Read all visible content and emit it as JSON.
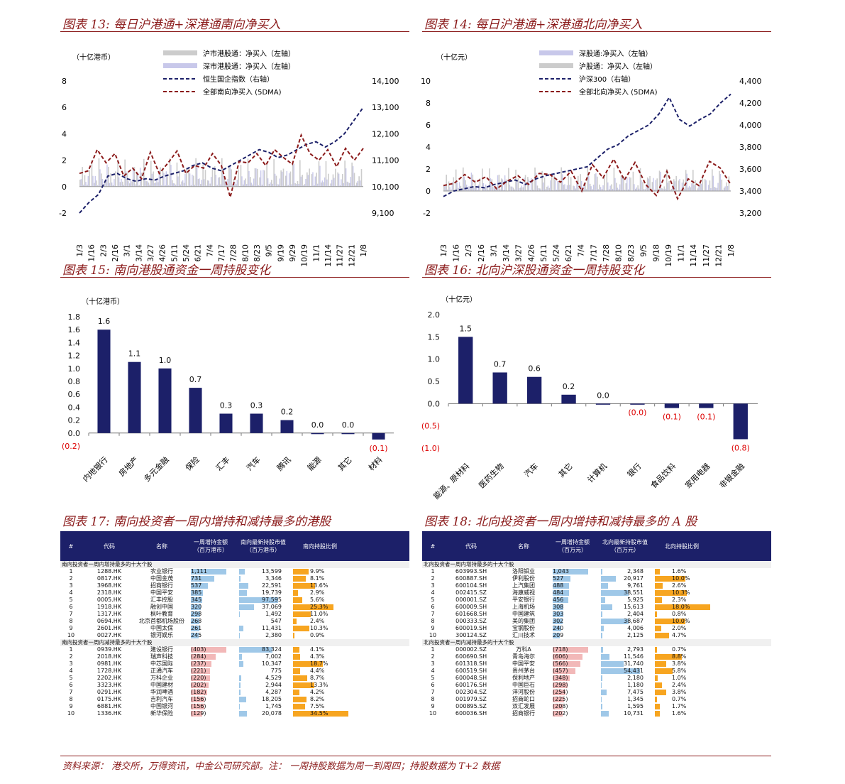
{
  "titles": {
    "f13": "图表 13:  每日沪港通+深港通南向净买入",
    "f14": "图表 14:  每日沪港通+深港通北向净买入",
    "f15": "图表 15:  南向港股通资金一周持股变化",
    "f16": "图表 16:  北向沪深股通资金一周持股变化",
    "f17": "图表 17:  南向投资者一周内增持和减持最多的港股",
    "f18": "图表 18:  北向投资者一周内增持和减持最多的 A 股"
  },
  "source": "资料来源：  港交所，万得资讯，中金公司研究部。注：  一周持股数据为周一到周四；持股数据为 T+2 数据",
  "colors": {
    "navy": "#1c2069",
    "maroon": "#8b1a1a",
    "lightbar": "#c8c8ea",
    "greybar": "#cccccc",
    "orange": "#f7a520",
    "blue_bar": "#9fc8e8",
    "pink": "#f2b8b8"
  },
  "chart_data": [
    {
      "id": "f13",
      "type": "line",
      "unit_label": "（十亿港币）",
      "legend": [
        "沪市港股通：净买入（左轴）",
        "深市港股通：净买入（左轴）",
        "恒生国企指数（右轴）",
        "全部南向净买入 (5DMA)"
      ],
      "x_ticks": [
        "1/3",
        "1/16",
        "2/3",
        "2/16",
        "3/1",
        "3/14",
        "3/27",
        "4/26",
        "5/11",
        "5/24",
        "6/21",
        "7/4",
        "7/17",
        "7/28",
        "8/10",
        "8/23",
        "9/5",
        "9/19",
        "9/29",
        "10/19",
        "11/1",
        "11/14",
        "11/27",
        "12/21",
        "1/8"
      ],
      "y_left_ticks": [
        "8",
        "6",
        "4",
        "2",
        "0",
        "-2"
      ],
      "ylim_left": [
        -2,
        8
      ],
      "y_right_ticks": [
        "14,100",
        "13,100",
        "12,100",
        "11,100",
        "10,100",
        "9,100"
      ],
      "ylim_right": [
        9100,
        14100
      ],
      "index_series": [
        9100,
        9500,
        9800,
        10500,
        10600,
        10400,
        10300,
        10400,
        10350,
        10500,
        10600,
        10700,
        10900,
        11000,
        10800,
        10700,
        10900,
        11100,
        11300,
        11500,
        11400,
        11200,
        11300,
        11500,
        11700,
        11800,
        11600,
        11800,
        12100,
        12600,
        13100
      ],
      "dma_series": [
        1,
        1.2,
        2.8,
        1.8,
        2.5,
        0.8,
        1.4,
        0.6,
        2.6,
        1.0,
        1.8,
        2.7,
        1.0,
        1.6,
        1.4,
        2.5,
        1.6,
        -0.8,
        1.9,
        1.8,
        2.5,
        1.6,
        2.8,
        2.2,
        1.7,
        3.9,
        2.5,
        2.0,
        2.8,
        1.5,
        2.9,
        2.0,
        2.9
      ]
    },
    {
      "id": "f14",
      "type": "line",
      "unit_label": "（十亿元）",
      "legend": [
        "深股通:净买入（左轴）",
        "沪股通：净买入（左轴）",
        "沪深300（右轴）",
        "全部北向净买入 (5DMA)"
      ],
      "x_ticks": [
        "1/3",
        "1/16",
        "2/3",
        "2/16",
        "3/1",
        "3/14",
        "3/27",
        "4/26",
        "5/11",
        "5/24",
        "6/21",
        "7/4",
        "7/17",
        "7/28",
        "8/10",
        "8/23",
        "9/5",
        "9/18",
        "10/19",
        "11/1",
        "11/14",
        "11/27",
        "12/21",
        "1/8"
      ],
      "y_left_ticks": [
        "10",
        "8",
        "6",
        "4",
        "2",
        "0",
        "-2"
      ],
      "ylim_left": [
        -2,
        10
      ],
      "y_right_ticks": [
        "4,400",
        "4,200",
        "4,000",
        "3,800",
        "3,600",
        "3,400",
        "3,200"
      ],
      "ylim_right": [
        3200,
        4400
      ],
      "index_series": [
        3350,
        3400,
        3420,
        3440,
        3430,
        3460,
        3480,
        3500,
        3460,
        3510,
        3540,
        3560,
        3580,
        3600,
        3620,
        3700,
        3780,
        3820,
        3900,
        3950,
        4000,
        4100,
        4250,
        4050,
        3990,
        4050,
        4100,
        4200,
        4280
      ],
      "dma_series": [
        0.5,
        0.7,
        1.5,
        0.8,
        1.3,
        0.2,
        0.9,
        1.4,
        0.6,
        1.6,
        1.5,
        0.8,
        1.8,
        0,
        2.4,
        1.2,
        2.9,
        1.0,
        2.6,
        0.6,
        -0.4,
        1.8,
        -0.7,
        1.1,
        0.5,
        2.7,
        2.1,
        0.6
      ]
    },
    {
      "id": "f15",
      "type": "bar",
      "unit_label": "（十亿港币）",
      "categories": [
        "内地银行",
        "房地产",
        "多元金融",
        "保险",
        "汇丰",
        "汽车",
        "腾讯",
        "能源",
        "其它",
        "材料"
      ],
      "values": [
        1.6,
        1.1,
        1.0,
        0.7,
        0.3,
        0.3,
        0.2,
        0.0,
        0.0,
        -0.1
      ],
      "labels": [
        "1.6",
        "1.1",
        "1.0",
        "0.7",
        "0.3",
        "0.3",
        "0.2",
        "0.0",
        "0.0",
        "(0.1)"
      ],
      "y_ticks": [
        "1.8",
        "1.6",
        "1.4",
        "1.2",
        "1.0",
        "0.8",
        "0.6",
        "0.4",
        "0.2",
        "0.0",
        "(0.2)"
      ],
      "ylim": [
        -0.2,
        1.8
      ]
    },
    {
      "id": "f16",
      "type": "bar",
      "unit_label": "（十亿元）",
      "categories": [
        "能源、原材料",
        "医药生物",
        "汽车",
        "其它",
        "计算机",
        "银行",
        "食品饮料",
        "家用电器",
        "非银金融"
      ],
      "values": [
        1.5,
        0.7,
        0.6,
        0.2,
        0.0,
        -0.0,
        -0.1,
        -0.1,
        -0.8
      ],
      "labels": [
        "1.5",
        "0.7",
        "0.6",
        "0.2",
        "0.0",
        "(0.0)",
        "(0.1)",
        "(0.1)",
        "(0.8)"
      ],
      "y_ticks": [
        "2.0",
        "1.5",
        "1.0",
        "0.5",
        "0.0",
        "(0.5)",
        "(1.0)"
      ],
      "ylim": [
        -1.0,
        2.0
      ]
    },
    {
      "id": "f17",
      "type": "table",
      "headers": [
        "#",
        "代码",
        "名称",
        "一周增持金额\n（百万港币）",
        "南向最新持股市值\n（百万港币）",
        "南向持股比例"
      ],
      "sections": [
        "南向投资者一周内增持最多的十大个股",
        "南向投资者一周内减持最多的十大个股"
      ],
      "rows_up": [
        [
          "1",
          "1288.HK",
          "农业银行",
          "1,111",
          "13,599",
          "9.9%"
        ],
        [
          "2",
          "0817.HK",
          "中国金茂",
          "731",
          "3,346",
          "8.1%"
        ],
        [
          "3",
          "3968.HK",
          "招商银行",
          "537",
          "22,591",
          "13.6%"
        ],
        [
          "4",
          "2318.HK",
          "中国平安",
          "385",
          "19,739",
          "2.9%"
        ],
        [
          "5",
          "0005.HK",
          "汇丰控股",
          "345",
          "97,595",
          "5.6%"
        ],
        [
          "6",
          "1918.HK",
          "融创中国",
          "320",
          "37,069",
          "25.3%"
        ],
        [
          "7",
          "1317.HK",
          "枫叶教育",
          "298",
          "1,492",
          "11.0%"
        ],
        [
          "8",
          "0694.HK",
          "北京首都机场股份",
          "268",
          "547",
          "2.4%"
        ],
        [
          "9",
          "2601.HK",
          "中国太保",
          "261",
          "11,431",
          "10.3%"
        ],
        [
          "10",
          "0027.HK",
          "银河娱乐",
          "245",
          "2,380",
          "0.9%"
        ]
      ],
      "rows_down": [
        [
          "1",
          "0939.HK",
          "建设银行",
          "(403)",
          "83,324",
          "4.1%"
        ],
        [
          "2",
          "2018.HK",
          "瑞声科技",
          "(284)",
          "7,002",
          "4.3%"
        ],
        [
          "3",
          "0981.HK",
          "中芯国际",
          "(237)",
          "10,347",
          "18.7%"
        ],
        [
          "4",
          "1728.HK",
          "正通汽车",
          "(221)",
          "775",
          "4.4%"
        ],
        [
          "5",
          "2202.HK",
          "万科企业",
          "(220)",
          "4,529",
          "8.7%"
        ],
        [
          "6",
          "3323.HK",
          "中国建材",
          "(202)",
          "2,944",
          "13.3%"
        ],
        [
          "7",
          "0291.HK",
          "华润啤酒",
          "(182)",
          "4,287",
          "4.2%"
        ],
        [
          "8",
          "0175.HK",
          "吉利汽车",
          "(156)",
          "18,205",
          "8.2%"
        ],
        [
          "9",
          "6881.HK",
          "中国银河",
          "(156)",
          "1,745",
          "7.5%"
        ],
        [
          "10",
          "1336.HK",
          "新华保险",
          "(129)",
          "20,078",
          "34.5%"
        ]
      ]
    },
    {
      "id": "f18",
      "type": "table",
      "headers": [
        "#",
        "代码",
        "名称",
        "一周增持金额\n（百万元）",
        "北向最新持股市值\n（百万元）",
        "北向持股比例"
      ],
      "sections": [
        "北向投资者一周内增持最多的十大个股",
        "北向投资者一周内减持最多的十大个股"
      ],
      "rows_up": [
        [
          "1",
          "603993.SH",
          "洛阳钼业",
          "1,043",
          "2,348",
          "1.6%"
        ],
        [
          "2",
          "600887.SH",
          "伊利股份",
          "527",
          "20,917",
          "10.0%"
        ],
        [
          "3",
          "600104.SH",
          "上汽集团",
          "488",
          "9,761",
          "2.6%"
        ],
        [
          "4",
          "002415.SZ",
          "海康威视",
          "484",
          "38,551",
          "10.3%"
        ],
        [
          "5",
          "000001.SZ",
          "平安银行",
          "456",
          "5,925",
          "2.3%"
        ],
        [
          "6",
          "600009.SH",
          "上海机场",
          "308",
          "15,613",
          "18.0%"
        ],
        [
          "7",
          "601668.SH",
          "中国建筑",
          "303",
          "2,404",
          "0.8%"
        ],
        [
          "8",
          "000333.SZ",
          "美的集团",
          "302",
          "38,687",
          "10.0%"
        ],
        [
          "9",
          "600019.SH",
          "宝钢股份",
          "240",
          "4,006",
          "2.0%"
        ],
        [
          "10",
          "300124.SZ",
          "汇川技术",
          "209",
          "2,125",
          "4.7%"
        ]
      ],
      "rows_down": [
        [
          "1",
          "000002.SZ",
          "万科A",
          "(718)",
          "2,793",
          "0.7%"
        ],
        [
          "2",
          "600690.SH",
          "青岛海尔",
          "(606)",
          "11,546",
          "8.8%"
        ],
        [
          "3",
          "601318.SH",
          "中国平安",
          "(566)",
          "31,740",
          "3.8%"
        ],
        [
          "4",
          "600519.SH",
          "贵州茅台",
          "(457)",
          "54,431",
          "5.8%"
        ],
        [
          "5",
          "600048.SH",
          "保利地产",
          "(348)",
          "2,180",
          "1.0%"
        ],
        [
          "6",
          "600176.SH",
          "中国巨石",
          "(298)",
          "1,180",
          "2.4%"
        ],
        [
          "7",
          "002304.SZ",
          "洋河股份",
          "(254)",
          "7,475",
          "3.8%"
        ],
        [
          "8",
          "001979.SZ",
          "招商蛇口",
          "(225)",
          "1,345",
          "0.7%"
        ],
        [
          "9",
          "000895.SZ",
          "双汇发展",
          "(208)",
          "1,595",
          "1.7%"
        ],
        [
          "10",
          "600036.SH",
          "招商银行",
          "(202)",
          "10,731",
          "1.6%"
        ]
      ]
    }
  ]
}
